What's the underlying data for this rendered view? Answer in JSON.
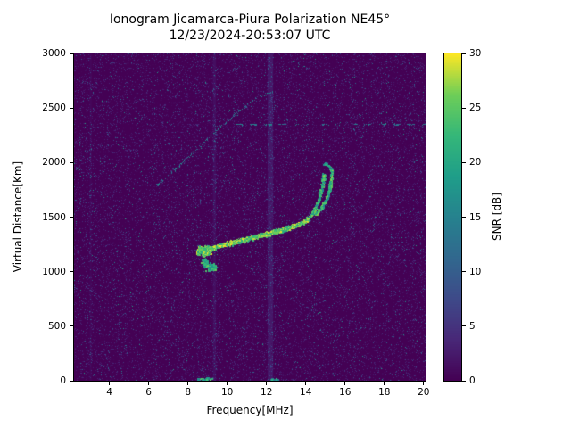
{
  "figure": {
    "background_color": "#ffffff",
    "plot_background_color": "#440154",
    "axis_color": "#000000"
  },
  "chart_data": {
    "type": "heatmap",
    "title": "Ionogram Jicamarca-Piura Polarization NE45°",
    "subtitle": "12/23/2024-20:53:07 UTC",
    "xlabel": "Frequency[MHz]",
    "ylabel": "Virtual Distance[Km]",
    "colorbar_label": "SNR [dB]",
    "xlim": [
      2.2,
      20.1
    ],
    "ylim": [
      0,
      3000
    ],
    "xticks": [
      4,
      6,
      8,
      10,
      12,
      14,
      16,
      18,
      20
    ],
    "yticks": [
      0,
      500,
      1000,
      1500,
      2000,
      2500,
      3000
    ],
    "colorbar_ticks": [
      0,
      5,
      10,
      15,
      20,
      25,
      30
    ],
    "colorbar_range": [
      0,
      30
    ],
    "grid": false,
    "legend": "none",
    "colormap": "viridis",
    "colormap_stops": [
      [
        0.0,
        "#440154"
      ],
      [
        0.125,
        "#482878"
      ],
      [
        0.25,
        "#3e4a89"
      ],
      [
        0.375,
        "#31688e"
      ],
      [
        0.5,
        "#26828e"
      ],
      [
        0.625,
        "#1f9e89"
      ],
      [
        0.75,
        "#35b779"
      ],
      [
        0.875,
        "#6ece58"
      ],
      [
        1.0,
        "#fde725"
      ]
    ],
    "noise_passes": [
      {
        "density": 0.13,
        "snr": [
          0.3,
          4.5
        ],
        "size": 1
      },
      {
        "density": 0.035,
        "snr": [
          2,
          12
        ],
        "size": 1
      },
      {
        "density": 0.0025,
        "snr": [
          12,
          20
        ],
        "size": 1
      }
    ],
    "rfi_bands_mhz": [
      {
        "freq": 12.2,
        "width": 0.28,
        "snr": 4.5,
        "alpha": 0.5,
        "speckles": 350
      },
      {
        "freq": 9.35,
        "width": 0.16,
        "snr": 3.2,
        "alpha": 0.4,
        "speckles": 140
      },
      {
        "freq": 3.05,
        "width": 0.1,
        "snr": 2.5,
        "alpha": 0.3,
        "speckles": 60
      }
    ],
    "echo_traces": [
      {
        "name": "leading-edge-blob",
        "snr": [
          20,
          30
        ],
        "thickness_km": 90,
        "count": 550,
        "size": 2,
        "points": [
          [
            8.45,
            1205
          ],
          [
            8.65,
            1185
          ],
          [
            8.9,
            1195
          ],
          [
            9.1,
            1210
          ]
        ]
      },
      {
        "name": "lower-cusp",
        "snr": [
          16,
          26
        ],
        "thickness_km": 70,
        "count": 200,
        "size": 2,
        "points": [
          [
            8.75,
            1115
          ],
          [
            8.95,
            1055
          ],
          [
            9.2,
            1030
          ],
          [
            9.4,
            1065
          ]
        ]
      },
      {
        "name": "f-trace-main",
        "snr": [
          20,
          30
        ],
        "thickness_km": 42,
        "count": 1700,
        "size": 2,
        "points": [
          [
            9.05,
            1215
          ],
          [
            9.5,
            1238
          ],
          [
            10.0,
            1260
          ],
          [
            10.5,
            1283
          ],
          [
            11.0,
            1306
          ],
          [
            11.5,
            1328
          ],
          [
            12.0,
            1350
          ],
          [
            12.5,
            1374
          ],
          [
            13.0,
            1400
          ],
          [
            13.5,
            1430
          ],
          [
            13.9,
            1463
          ],
          [
            14.15,
            1500
          ]
        ]
      },
      {
        "name": "steep-branch-inner",
        "snr": [
          16,
          27
        ],
        "thickness_km": 30,
        "count": 280,
        "size": 2,
        "points": [
          [
            14.15,
            1500
          ],
          [
            14.4,
            1565
          ],
          [
            14.6,
            1645
          ],
          [
            14.75,
            1735
          ],
          [
            14.85,
            1825
          ],
          [
            14.9,
            1905
          ]
        ]
      },
      {
        "name": "steep-branch-outer",
        "snr": [
          16,
          27
        ],
        "thickness_km": 30,
        "count": 300,
        "size": 2,
        "points": [
          [
            14.45,
            1525
          ],
          [
            14.8,
            1590
          ],
          [
            15.05,
            1680
          ],
          [
            15.2,
            1780
          ],
          [
            15.3,
            1880
          ],
          [
            15.28,
            1950
          ]
        ]
      },
      {
        "name": "top-hook",
        "snr": [
          14,
          24
        ],
        "thickness_km": 28,
        "count": 70,
        "size": 2,
        "points": [
          [
            15.28,
            1945
          ],
          [
            15.1,
            1980
          ],
          [
            14.9,
            1995
          ]
        ]
      },
      {
        "name": "oblique-faint-echo",
        "snr": [
          8,
          18
        ],
        "thickness_km": 26,
        "count": 160,
        "size": 1,
        "points": [
          [
            6.4,
            1790
          ],
          [
            7.2,
            1920
          ],
          [
            8.0,
            2055
          ],
          [
            8.8,
            2190
          ],
          [
            9.6,
            2320
          ],
          [
            10.4,
            2450
          ],
          [
            11.2,
            2560
          ],
          [
            11.9,
            2625
          ],
          [
            12.3,
            2655
          ]
        ]
      },
      {
        "name": "horizontal-dashed-2350",
        "snr": [
          10,
          17
        ],
        "thickness_km": 14,
        "count": 380,
        "size": 1,
        "dash": [
          9,
          7
        ],
        "gap_range": [
          13.3,
          17.2
        ],
        "gap_keep": 0.3,
        "points": [
          [
            10.4,
            2352
          ],
          [
            20.1,
            2352
          ]
        ]
      },
      {
        "name": "bottom-specks-a",
        "snr": [
          14,
          26
        ],
        "thickness_km": 30,
        "count": 45,
        "size": 2,
        "points": [
          [
            8.45,
            18
          ],
          [
            9.2,
            22
          ]
        ]
      },
      {
        "name": "bottom-specks-b",
        "snr": [
          12,
          22
        ],
        "thickness_km": 25,
        "count": 25,
        "size": 2,
        "points": [
          [
            12.2,
            15
          ],
          [
            12.6,
            18
          ]
        ]
      }
    ]
  }
}
